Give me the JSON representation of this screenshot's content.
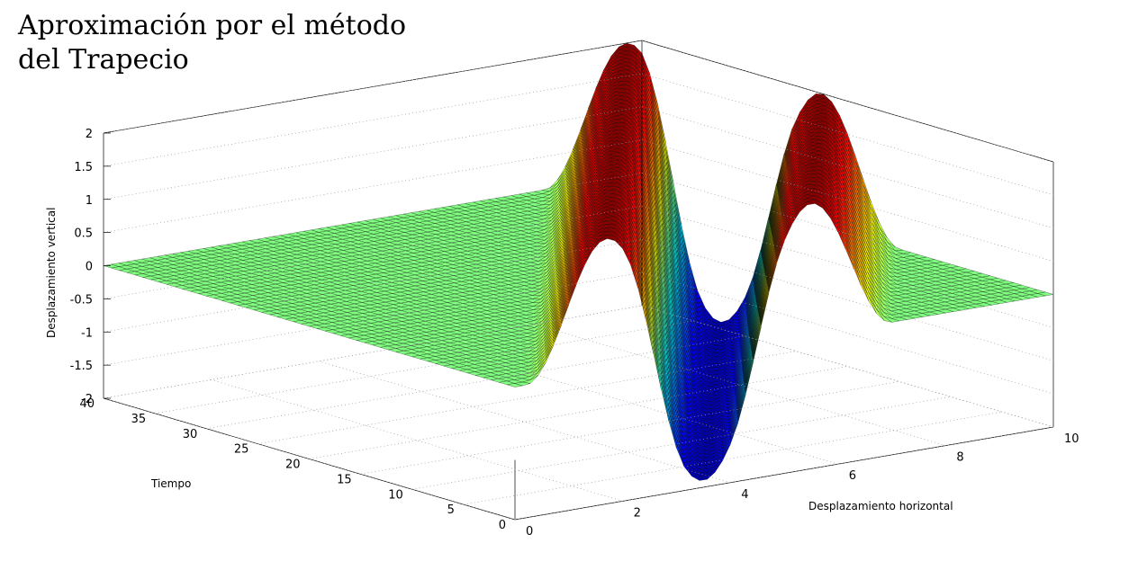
{
  "title_lines": [
    "Aproximación por el método",
    "del Trapecio"
  ],
  "chart_data": {
    "type": "surface",
    "title": "Aproximación por el método del Trapecio",
    "xlabel": "Desplazamiento horizontal",
    "ylabel": "Tiempo",
    "zlabel": "Desplazamiento vertical",
    "xlim": [
      0,
      10
    ],
    "ylim": [
      0,
      40
    ],
    "zlim": [
      -2,
      2
    ],
    "x_ticks": [
      "0",
      "2",
      "4",
      "6",
      "8",
      "10"
    ],
    "y_ticks": [
      "0",
      "5",
      "10",
      "15",
      "20",
      "25",
      "30",
      "35",
      "40"
    ],
    "z_ticks": [
      "-2",
      "-1.5",
      "-1",
      "-0.5",
      "0",
      "0.5",
      "1",
      "1.5",
      "2"
    ],
    "colormap": [
      "#00008f",
      "#0000ff",
      "#0080ff",
      "#00ffff",
      "#80ff80",
      "#ffff00",
      "#ff8000",
      "#ff0000",
      "#800000"
    ],
    "mesh_color": "#000000",
    "grid": true,
    "surface_description_points": [
      {
        "x": 0,
        "y": 40,
        "z": 0
      },
      {
        "x": 10,
        "y": 0,
        "z": 0
      }
    ]
  }
}
